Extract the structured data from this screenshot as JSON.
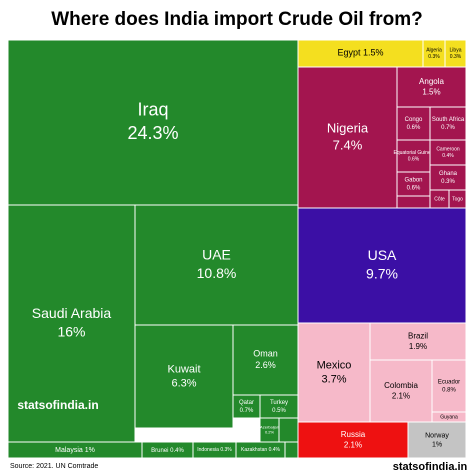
{
  "chart_data": {
    "type": "treemap",
    "title": "Where does India import Crude Oil from?",
    "source": "Source: 2021. UN Comtrade",
    "brand": "statsofindia.in",
    "categories": [
      "Iraq",
      "Saudi Arabia",
      "UAE",
      "Kuwait",
      "Oman",
      "Qatar",
      "Turkey",
      "Azerbaijan",
      "Malaysia",
      "Brunei",
      "Indonesia",
      "Kazakhstan",
      "Egypt",
      "Algeria",
      "Libya",
      "Nigeria",
      "Angola",
      "Congo",
      "South Africa",
      "Equatorial Guinea",
      "Cameroon",
      "Gabon",
      "Ghana",
      "Côte",
      "Togo",
      "USA",
      "Mexico",
      "Brazil",
      "Colombia",
      "Ecuador",
      "Guyana",
      "Russia",
      "Norway"
    ],
    "values": [
      24.3,
      16,
      10.8,
      6.3,
      2.6,
      0.7,
      0.5,
      0.2,
      1,
      0.4,
      0.3,
      0.4,
      1.5,
      0.3,
      0.3,
      7.4,
      1.5,
      0.6,
      0.7,
      0.6,
      0.4,
      0.6,
      0.3,
      0.2,
      0.2,
      9.7,
      3.7,
      1.9,
      2.1,
      0.8,
      0.1,
      2.1,
      1
    ],
    "value_labels": [
      "24.3%",
      "16%",
      "10.8%",
      "6.3%",
      "2.6%",
      "0.7%",
      "0.5%",
      "0.2%",
      "1%",
      "0.4%",
      "0.3%",
      "0.4%",
      "1.5%",
      "0.3%",
      "0.3%",
      "7.4%",
      "1.5%",
      "0.6%",
      "0.7%",
      "0.6%",
      "0.4%",
      "0.6%",
      "0.3%",
      null,
      null,
      "9.7%",
      "3.7%",
      "1.9%",
      "2.1%",
      "0.8%",
      null,
      "2.1%",
      "1%"
    ],
    "colors": [
      "#23892b",
      "#23892b",
      "#23892b",
      "#23892b",
      "#23892b",
      "#23892b",
      "#23892b",
      "#23892b",
      "#23892b",
      "#23892b",
      "#23892b",
      "#23892b",
      "#f4df1f",
      "#f4df1f",
      "#f4df1f",
      "#a3154f",
      "#a3154f",
      "#a3154f",
      "#a3154f",
      "#a3154f",
      "#a3154f",
      "#a3154f",
      "#a3154f",
      "#a3154f",
      "#a3154f",
      "#3b0fa5",
      "#f6b9c9",
      "#f6b9c9",
      "#f6b9c9",
      "#f6b9c9",
      "#f6b9c9",
      "#ee1111",
      "#c4c4c4"
    ]
  }
}
